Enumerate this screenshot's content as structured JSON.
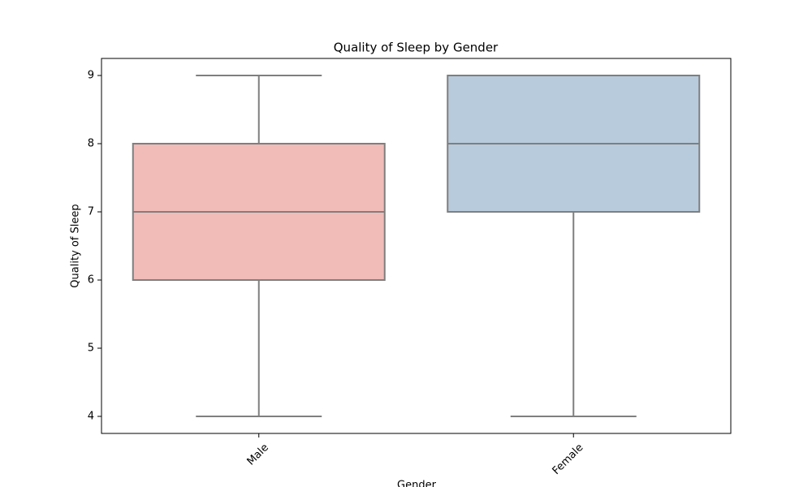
{
  "chart_data": {
    "type": "box",
    "title": "Quality of Sleep by Gender",
    "x_label": "Gender",
    "y_label": "Quality of Sleep",
    "categories": [
      "Male",
      "Female"
    ],
    "boxes": [
      {
        "min": 4,
        "q1": 6,
        "median": 7,
        "q3": 8,
        "max": 9
      },
      {
        "min": 4,
        "q1": 7,
        "median": 8,
        "q3": 9,
        "max": 9
      }
    ],
    "colors": [
      "#f1bbb8",
      "#b8cbdd"
    ],
    "line_color": "#7f7f7f",
    "ylim": [
      3.75,
      9.25
    ],
    "yticks": [
      4,
      5,
      6,
      7,
      8,
      9
    ]
  }
}
